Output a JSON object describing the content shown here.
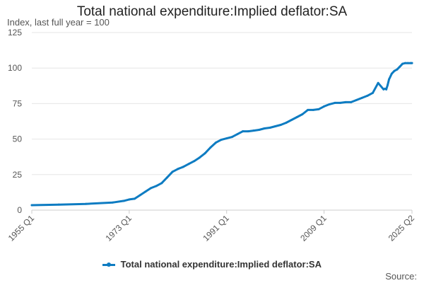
{
  "chart_data": {
    "type": "line",
    "title": "Total national expenditure:Implied deflator:SA",
    "subtitle": "Index, last full year = 100",
    "xlabel": "",
    "ylabel": "Index, last full year = 100",
    "ylim": [
      0,
      125
    ],
    "yticks": [
      0,
      25,
      50,
      75,
      100,
      125
    ],
    "grid": true,
    "legend_position": "bottom",
    "x_tick_labels": [
      "1955 Q1",
      "1973 Q1",
      "1991 Q1",
      "2009 Q1",
      "2025 Q2"
    ],
    "x_tick_positions": [
      1955.0,
      1973.0,
      1991.0,
      2009.0,
      2025.25
    ],
    "xlim": [
      1955.0,
      2025.25
    ],
    "color": "#0e7cc2",
    "series": [
      {
        "name": "Total national expenditure:Implied deflator:SA",
        "x": [
          1955.0,
          1960.0,
          1965.0,
          1968.0,
          1970.0,
          1972.0,
          1973.0,
          1974.0,
          1975.0,
          1976.0,
          1977.0,
          1978.0,
          1979.0,
          1980.0,
          1981.0,
          1982.0,
          1983.0,
          1984.0,
          1985.0,
          1986.0,
          1987.0,
          1988.0,
          1989.0,
          1990.0,
          1991.0,
          1992.0,
          1993.0,
          1994.0,
          1995.0,
          1996.0,
          1997.0,
          1998.0,
          1999.0,
          2000.0,
          2001.0,
          2002.0,
          2003.0,
          2004.0,
          2005.0,
          2006.0,
          2007.0,
          2008.0,
          2009.0,
          2010.0,
          2011.0,
          2012.0,
          2013.0,
          2014.0,
          2015.0,
          2016.0,
          2017.0,
          2018.0,
          2019.0,
          2020.0,
          2020.25,
          2020.5,
          2020.75,
          2021.0,
          2021.5,
          2022.0,
          2022.5,
          2023.0,
          2023.5,
          2024.0,
          2024.5,
          2025.0,
          2025.25
        ],
        "values": [
          3.5,
          3.9,
          4.4,
          5.0,
          5.4,
          6.5,
          7.5,
          8.0,
          10.5,
          13.0,
          15.5,
          17.0,
          19.0,
          23.0,
          27.0,
          29.0,
          30.5,
          32.5,
          34.5,
          37.0,
          40.0,
          44.0,
          47.5,
          49.5,
          50.5,
          51.5,
          53.5,
          55.5,
          55.5,
          56.0,
          56.5,
          57.5,
          58.0,
          59.0,
          60.0,
          61.5,
          63.5,
          65.5,
          67.5,
          70.5,
          70.5,
          71.0,
          73.0,
          74.5,
          75.5,
          75.5,
          76.0,
          76.0,
          77.5,
          79.0,
          80.5,
          82.5,
          89.5,
          85.0,
          85.5,
          85.0,
          88.0,
          92.0,
          96.0,
          98.0,
          99.0,
          101.0,
          103.0,
          103.5,
          103.5,
          103.5,
          103.5
        ]
      }
    ],
    "legend_label": "Total national expenditure:Implied deflator:SA",
    "source_label": "Source:"
  }
}
